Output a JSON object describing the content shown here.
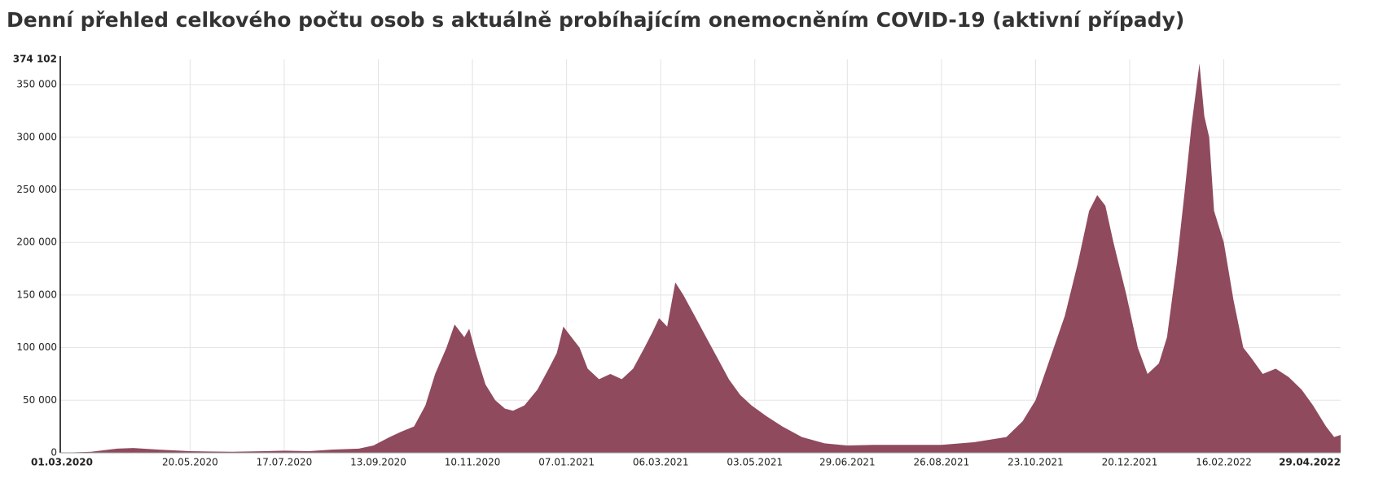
{
  "chart_data": {
    "type": "area",
    "title": "Denní přehled celkového počtu osob s aktuálně probíhajícím onemocněním COVID-19 (aktivní případy)",
    "color": "#8f4a5e",
    "grid": true,
    "xlim": [
      "01.03.2020",
      "29.04.2022"
    ],
    "xticks": [
      "01.03.2020",
      "20.05.2020",
      "17.07.2020",
      "13.09.2020",
      "10.11.2020",
      "07.01.2021",
      "06.03.2021",
      "03.05.2021",
      "29.06.2021",
      "26.08.2021",
      "23.10.2021",
      "20.12.2021",
      "16.02.2022",
      "29.04.2022"
    ],
    "ylim": [
      0,
      374102
    ],
    "yticks": [
      0,
      {
        "value": 50000,
        "label": "50 000"
      },
      {
        "value": 100000,
        "label": "100 000"
      },
      {
        "value": 150000,
        "label": "150 000"
      },
      {
        "value": 200000,
        "label": "200 000"
      },
      {
        "value": 250000,
        "label": "250 000"
      },
      {
        "value": 300000,
        "label": "300 000"
      },
      {
        "value": 350000,
        "label": "350 000"
      },
      {
        "value": 374102,
        "label": "374 102"
      }
    ],
    "x": [
      "01.03.2020",
      "20.03.2020",
      "05.04.2020",
      "15.04.2020",
      "01.05.2020",
      "20.05.2020",
      "15.06.2020",
      "05.07.2020",
      "17.07.2020",
      "01.08.2020",
      "15.08.2020",
      "01.09.2020",
      "10.09.2020",
      "20.09.2020",
      "27.09.2020",
      "05.10.2020",
      "12.10.2020",
      "18.10.2020",
      "25.10.2020",
      "30.10.2020",
      "05.11.2020",
      "08.11.2020",
      "12.11.2020",
      "18.11.2020",
      "24.11.2020",
      "30.11.2020",
      "05.12.2020",
      "12.12.2020",
      "20.12.2020",
      "27.12.2020",
      "01.01.2021",
      "05.01.2021",
      "10.01.2021",
      "15.01.2021",
      "20.01.2021",
      "27.01.2021",
      "03.02.2021",
      "10.02.2021",
      "17.02.2021",
      "24.02.2021",
      "01.03.2021",
      "05.03.2021",
      "10.03.2021",
      "15.03.2021",
      "20.03.2021",
      "27.03.2021",
      "03.04.2021",
      "10.04.2021",
      "17.04.2021",
      "24.04.2021",
      "01.05.2021",
      "10.05.2021",
      "20.05.2021",
      "01.06.2021",
      "15.06.2021",
      "29.06.2021",
      "15.07.2021",
      "26.08.2021",
      "15.09.2021",
      "05.10.2021",
      "15.10.2021",
      "23.10.2021",
      "01.11.2021",
      "10.11.2021",
      "18.11.2021",
      "25.11.2021",
      "30.11.2021",
      "05.12.2021",
      "10.12.2021",
      "18.12.2021",
      "25.12.2021",
      "31.12.2021",
      "07.01.2022",
      "12.01.2022",
      "18.01.2022",
      "23.01.2022",
      "27.01.2022",
      "01.02.2022",
      "04.02.2022",
      "07.02.2022",
      "10.02.2022",
      "16.02.2022",
      "22.02.2022",
      "28.02.2022",
      "05.03.2022",
      "12.03.2022",
      "20.03.2022",
      "28.03.2022",
      "05.04.2022",
      "12.04.2022",
      "20.04.2022",
      "25.04.2022",
      "29.04.2022"
    ],
    "values": [
      0,
      1000,
      4000,
      4500,
      3000,
      1500,
      1000,
      1500,
      2000,
      1500,
      3000,
      4000,
      7000,
      15000,
      20000,
      25000,
      45000,
      75000,
      100000,
      122000,
      110000,
      118000,
      95000,
      65000,
      50000,
      42000,
      40000,
      45000,
      60000,
      80000,
      95000,
      120000,
      110000,
      100000,
      80000,
      70000,
      75000,
      70000,
      80000,
      100000,
      115000,
      128000,
      120000,
      162000,
      150000,
      130000,
      110000,
      90000,
      70000,
      55000,
      45000,
      35000,
      25000,
      15000,
      9000,
      7000,
      7500,
      7500,
      10000,
      15000,
      30000,
      50000,
      90000,
      130000,
      180000,
      230000,
      245000,
      235000,
      200000,
      150000,
      100000,
      75000,
      85000,
      110000,
      180000,
      250000,
      310000,
      370000,
      320000,
      300000,
      230000,
      200000,
      145000,
      100000,
      90000,
      75000,
      80000,
      72000,
      60000,
      45000,
      25000,
      15000,
      17000
    ]
  }
}
